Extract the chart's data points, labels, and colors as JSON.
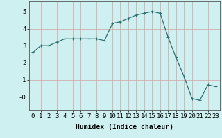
{
  "x": [
    0,
    1,
    2,
    3,
    4,
    5,
    6,
    7,
    8,
    9,
    10,
    11,
    12,
    13,
    14,
    15,
    16,
    17,
    18,
    19,
    20,
    21,
    22,
    23
  ],
  "y": [
    2.6,
    3.0,
    3.0,
    3.2,
    3.4,
    3.4,
    3.4,
    3.4,
    3.4,
    3.3,
    4.3,
    4.4,
    4.6,
    4.8,
    4.9,
    5.0,
    4.9,
    3.5,
    2.3,
    1.2,
    -0.1,
    -0.2,
    0.7,
    0.6
  ],
  "line_color": "#2d6e6e",
  "marker": "+",
  "marker_size": 3,
  "marker_linewidth": 0.8,
  "line_width": 0.9,
  "bg_color": "#cff0f0",
  "grid_color": "#b8dede",
  "xlabel": "Humidex (Indice chaleur)",
  "ylim": [
    -0.8,
    5.6
  ],
  "xlim": [
    -0.5,
    23.5
  ],
  "ytick_vals": [
    5,
    4,
    3,
    2,
    1,
    0
  ],
  "ytick_labels": [
    "5",
    "4",
    "3",
    "2",
    "1",
    "-0"
  ],
  "xtick_labels": [
    "0",
    "1",
    "2",
    "3",
    "4",
    "5",
    "6",
    "7",
    "8",
    "9",
    "10",
    "11",
    "12",
    "13",
    "14",
    "15",
    "16",
    "17",
    "18",
    "19",
    "20",
    "21",
    "22",
    "23"
  ],
  "xlabel_fontsize": 7,
  "tick_fontsize": 6.5
}
